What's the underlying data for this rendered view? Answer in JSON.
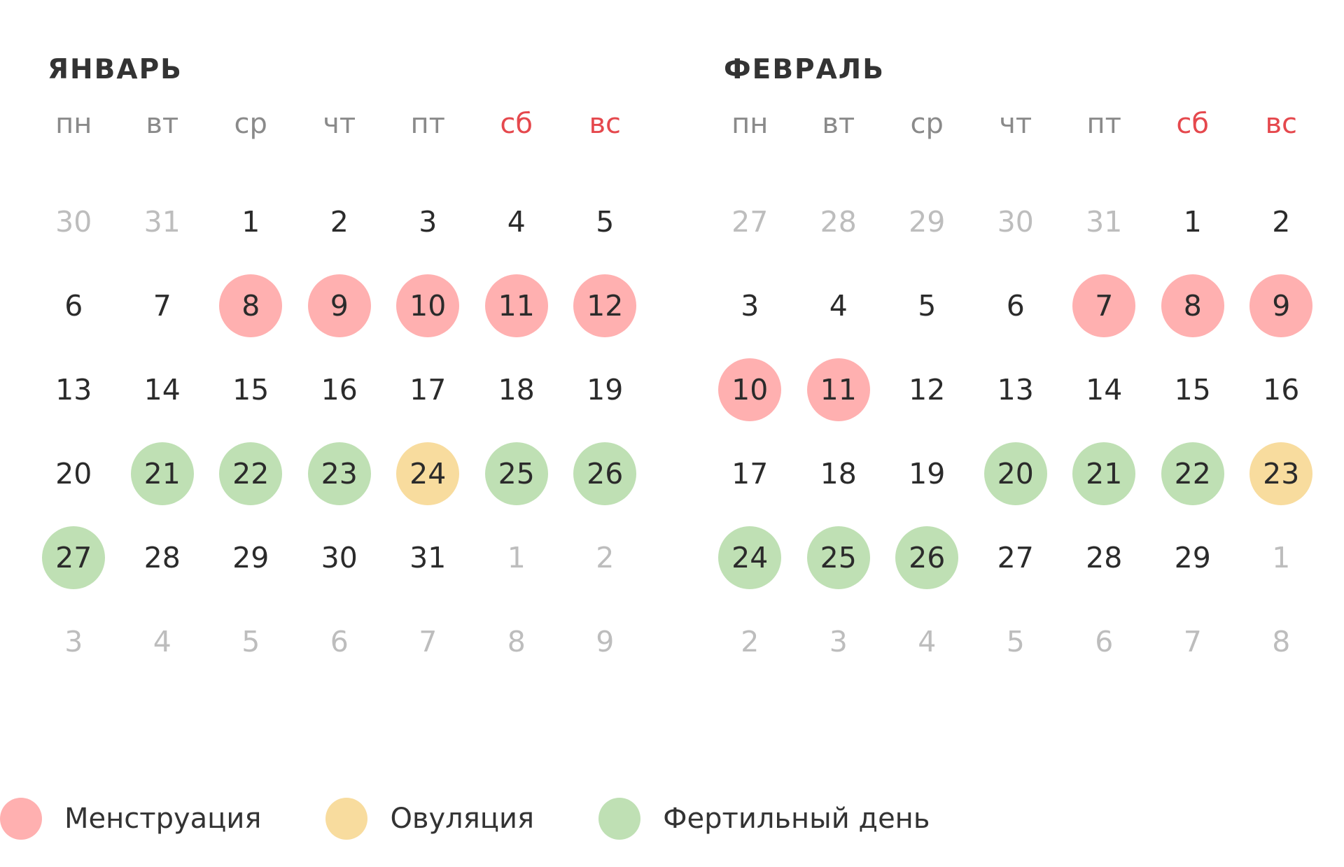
{
  "colors": {
    "menstruation": "#ffb0b0",
    "ovulation": "#f8dc9e",
    "fertile": "#bfe0b4",
    "weekend_label": "#e5484d",
    "other_month_day": "#bdbdbd"
  },
  "months": [
    {
      "title": "ЯНВАРЬ",
      "weekdays": [
        "пн",
        "вт",
        "ср",
        "чт",
        "пт",
        "сб",
        "вс"
      ],
      "weeks": [
        [
          {
            "d": "30",
            "o": true
          },
          {
            "d": "31",
            "o": true
          },
          {
            "d": "1"
          },
          {
            "d": "2"
          },
          {
            "d": "3"
          },
          {
            "d": "4"
          },
          {
            "d": "5"
          }
        ],
        [
          {
            "d": "6"
          },
          {
            "d": "7"
          },
          {
            "d": "8",
            "t": "menstruation"
          },
          {
            "d": "9",
            "t": "menstruation"
          },
          {
            "d": "10",
            "t": "menstruation"
          },
          {
            "d": "11",
            "t": "menstruation"
          },
          {
            "d": "12",
            "t": "menstruation"
          }
        ],
        [
          {
            "d": "13"
          },
          {
            "d": "14"
          },
          {
            "d": "15"
          },
          {
            "d": "16"
          },
          {
            "d": "17"
          },
          {
            "d": "18"
          },
          {
            "d": "19"
          }
        ],
        [
          {
            "d": "20"
          },
          {
            "d": "21",
            "t": "fertile"
          },
          {
            "d": "22",
            "t": "fertile"
          },
          {
            "d": "23",
            "t": "fertile"
          },
          {
            "d": "24",
            "t": "ovulation"
          },
          {
            "d": "25",
            "t": "fertile"
          },
          {
            "d": "26",
            "t": "fertile"
          }
        ],
        [
          {
            "d": "27",
            "t": "fertile"
          },
          {
            "d": "28"
          },
          {
            "d": "29"
          },
          {
            "d": "30"
          },
          {
            "d": "31"
          },
          {
            "d": "1",
            "o": true
          },
          {
            "d": "2",
            "o": true
          }
        ],
        [
          {
            "d": "3",
            "o": true
          },
          {
            "d": "4",
            "o": true
          },
          {
            "d": "5",
            "o": true
          },
          {
            "d": "6",
            "o": true
          },
          {
            "d": "7",
            "o": true
          },
          {
            "d": "8",
            "o": true
          },
          {
            "d": "9",
            "o": true
          }
        ]
      ]
    },
    {
      "title": "ФЕВРАЛЬ",
      "weekdays": [
        "пн",
        "вт",
        "ср",
        "чт",
        "пт",
        "сб",
        "вс"
      ],
      "weeks": [
        [
          {
            "d": "27",
            "o": true
          },
          {
            "d": "28",
            "o": true
          },
          {
            "d": "29",
            "o": true
          },
          {
            "d": "30",
            "o": true
          },
          {
            "d": "31",
            "o": true
          },
          {
            "d": "1"
          },
          {
            "d": "2"
          }
        ],
        [
          {
            "d": "3"
          },
          {
            "d": "4"
          },
          {
            "d": "5"
          },
          {
            "d": "6"
          },
          {
            "d": "7",
            "t": "menstruation"
          },
          {
            "d": "8",
            "t": "menstruation"
          },
          {
            "d": "9",
            "t": "menstruation"
          }
        ],
        [
          {
            "d": "10",
            "t": "menstruation"
          },
          {
            "d": "11",
            "t": "menstruation"
          },
          {
            "d": "12"
          },
          {
            "d": "13"
          },
          {
            "d": "14"
          },
          {
            "d": "15"
          },
          {
            "d": "16"
          }
        ],
        [
          {
            "d": "17"
          },
          {
            "d": "18"
          },
          {
            "d": "19"
          },
          {
            "d": "20",
            "t": "fertile"
          },
          {
            "d": "21",
            "t": "fertile"
          },
          {
            "d": "22",
            "t": "fertile"
          },
          {
            "d": "23",
            "t": "ovulation"
          }
        ],
        [
          {
            "d": "24",
            "t": "fertile"
          },
          {
            "d": "25",
            "t": "fertile"
          },
          {
            "d": "26",
            "t": "fertile"
          },
          {
            "d": "27"
          },
          {
            "d": "28"
          },
          {
            "d": "29"
          },
          {
            "d": "1",
            "o": true
          }
        ],
        [
          {
            "d": "2",
            "o": true
          },
          {
            "d": "3",
            "o": true
          },
          {
            "d": "4",
            "o": true
          },
          {
            "d": "5",
            "o": true
          },
          {
            "d": "6",
            "o": true
          },
          {
            "d": "7",
            "o": true
          },
          {
            "d": "8",
            "o": true
          }
        ]
      ]
    }
  ],
  "legend": {
    "menstruation": "Менструация",
    "ovulation": "Овуляция",
    "fertile": "Фертильный день"
  }
}
